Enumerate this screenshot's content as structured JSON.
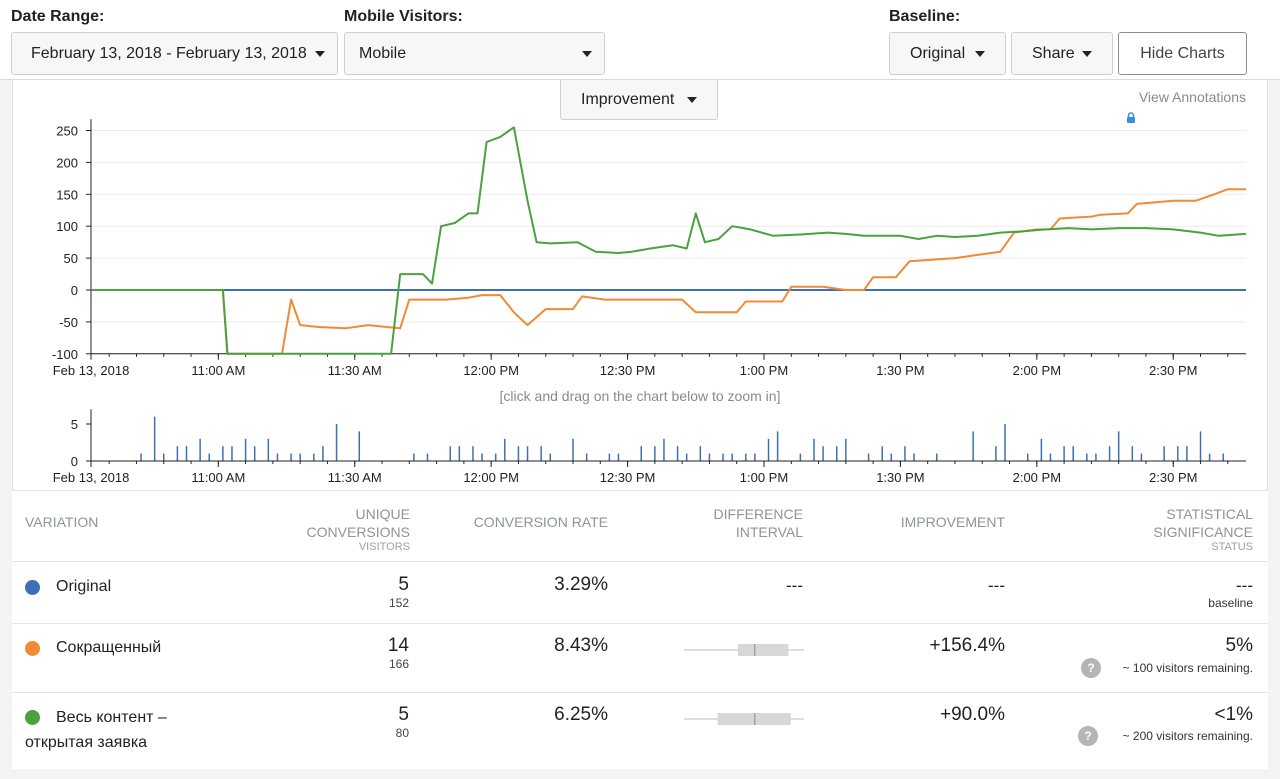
{
  "filters": {
    "date_range_label": "Date Range:",
    "date_range_value": "February 13, 2018 - February 13, 2018",
    "mobile_label": "Mobile Visitors:",
    "mobile_value": "Mobile",
    "baseline_label": "Baseline:",
    "baseline_value": "Original",
    "share_label": "Share",
    "hide_charts_label": "Hide Charts"
  },
  "chart_controls": {
    "metric_dropdown": "Improvement",
    "view_annotations": "View Annotations",
    "zoom_hint": "[click and drag on the chart below to zoom in]"
  },
  "chart_data": [
    {
      "type": "line",
      "title": "",
      "x_ticks": [
        "Feb 13, 2018",
        "11:00 AM",
        "11:30 AM",
        "12:00 PM",
        "12:30 PM",
        "1:00 PM",
        "1:30 PM",
        "2:00 PM",
        "2:30 PM"
      ],
      "x_range": [
        "10:32",
        "14:46"
      ],
      "ylim": [
        -100,
        260
      ],
      "y_ticks": [
        250,
        200,
        150,
        100,
        50,
        0,
        -50,
        -100
      ],
      "grid": true,
      "series": [
        {
          "color": "#3d6fb5",
          "points": [
            [
              "10:32",
              0
            ],
            [
              "14:46",
              0
            ]
          ]
        },
        {
          "color": "#f28a35",
          "points": [
            [
              "10:32",
              0
            ],
            [
              "11:01",
              0
            ],
            [
              "11:02",
              -100
            ],
            [
              "11:14",
              -100
            ],
            [
              "11:16",
              -15
            ],
            [
              "11:18",
              -55
            ],
            [
              "11:22",
              -58
            ],
            [
              "11:28",
              -60
            ],
            [
              "11:33",
              -55
            ],
            [
              "11:37",
              -58
            ],
            [
              "11:40",
              -60
            ],
            [
              "11:42",
              -15
            ],
            [
              "11:50",
              -15
            ],
            [
              "11:55",
              -12
            ],
            [
              "11:58",
              -8
            ],
            [
              "12:02",
              -8
            ],
            [
              "12:05",
              -35
            ],
            [
              "12:08",
              -55
            ],
            [
              "12:12",
              -30
            ],
            [
              "12:18",
              -30
            ],
            [
              "12:20",
              -10
            ],
            [
              "12:25",
              -15
            ],
            [
              "12:32",
              -15
            ],
            [
              "12:37",
              -15
            ],
            [
              "12:42",
              -15
            ],
            [
              "12:45",
              -35
            ],
            [
              "12:54",
              -35
            ],
            [
              "12:56",
              -18
            ],
            [
              "13:04",
              -18
            ],
            [
              "13:06",
              5
            ],
            [
              "13:13",
              5
            ],
            [
              "13:18",
              0
            ],
            [
              "13:22",
              0
            ],
            [
              "13:24",
              20
            ],
            [
              "13:29",
              20
            ],
            [
              "13:32",
              45
            ],
            [
              "13:38",
              48
            ],
            [
              "13:42",
              50
            ],
            [
              "13:47",
              55
            ],
            [
              "13:52",
              60
            ],
            [
              "13:55",
              90
            ],
            [
              "14:00",
              95
            ],
            [
              "14:03",
              95
            ],
            [
              "14:05",
              112
            ],
            [
              "14:12",
              115
            ],
            [
              "14:14",
              118
            ],
            [
              "14:20",
              120
            ],
            [
              "14:22",
              135
            ],
            [
              "14:30",
              140
            ],
            [
              "14:35",
              140
            ],
            [
              "14:39",
              150
            ],
            [
              "14:42",
              158
            ],
            [
              "14:46",
              158
            ]
          ]
        },
        {
          "color": "#4aa23e",
          "points": [
            [
              "10:32",
              0
            ],
            [
              "11:01",
              0
            ],
            [
              "11:02",
              -100
            ],
            [
              "11:38",
              -100
            ],
            [
              "11:40",
              25
            ],
            [
              "11:45",
              25
            ],
            [
              "11:47",
              10
            ],
            [
              "11:49",
              100
            ],
            [
              "11:52",
              105
            ],
            [
              "11:55",
              120
            ],
            [
              "11:57",
              120
            ],
            [
              "11:59",
              232
            ],
            [
              "12:02",
              240
            ],
            [
              "12:05",
              255
            ],
            [
              "12:08",
              140
            ],
            [
              "12:10",
              75
            ],
            [
              "12:13",
              73
            ],
            [
              "12:19",
              75
            ],
            [
              "12:23",
              60
            ],
            [
              "12:28",
              58
            ],
            [
              "12:31",
              60
            ],
            [
              "12:35",
              65
            ],
            [
              "12:40",
              70
            ],
            [
              "12:43",
              65
            ],
            [
              "12:45",
              120
            ],
            [
              "12:47",
              75
            ],
            [
              "12:50",
              80
            ],
            [
              "12:53",
              100
            ],
            [
              "12:57",
              95
            ],
            [
              "13:02",
              85
            ],
            [
              "13:08",
              87
            ],
            [
              "13:14",
              90
            ],
            [
              "13:18",
              88
            ],
            [
              "13:22",
              85
            ],
            [
              "13:26",
              85
            ],
            [
              "13:30",
              85
            ],
            [
              "13:34",
              80
            ],
            [
              "13:38",
              85
            ],
            [
              "13:42",
              83
            ],
            [
              "13:47",
              85
            ],
            [
              "13:52",
              90
            ],
            [
              "13:57",
              92
            ],
            [
              "14:02",
              95
            ],
            [
              "14:07",
              97
            ],
            [
              "14:12",
              95
            ],
            [
              "14:18",
              97
            ],
            [
              "14:24",
              97
            ],
            [
              "14:30",
              95
            ],
            [
              "14:36",
              90
            ],
            [
              "14:40",
              85
            ],
            [
              "14:46",
              88
            ]
          ]
        }
      ]
    },
    {
      "type": "bar",
      "title": "",
      "x_ticks": [
        "Feb 13, 2018",
        "11:00 AM",
        "11:30 AM",
        "12:00 PM",
        "12:30 PM",
        "1:00 PM",
        "1:30 PM",
        "2:00 PM",
        "2:30 PM"
      ],
      "ylim": [
        0,
        7
      ],
      "y_ticks": [
        5,
        0
      ],
      "color": "#3d6fb5",
      "x": [
        "10:43",
        "10:46",
        "10:48",
        "10:51",
        "10:53",
        "10:56",
        "10:58",
        "11:01",
        "11:03",
        "11:06",
        "11:08",
        "11:11",
        "11:13",
        "11:16",
        "11:18",
        "11:21",
        "11:23",
        "11:26",
        "11:31",
        "11:43",
        "11:46",
        "11:51",
        "11:53",
        "11:56",
        "11:58",
        "12:01",
        "12:03",
        "12:06",
        "12:08",
        "12:11",
        "12:13",
        "12:18",
        "12:21",
        "12:26",
        "12:28",
        "12:33",
        "12:36",
        "12:38",
        "12:41",
        "12:43",
        "12:46",
        "12:48",
        "12:51",
        "12:53",
        "12:56",
        "12:58",
        "13:01",
        "13:03",
        "13:08",
        "13:11",
        "13:13",
        "13:16",
        "13:18",
        "13:23",
        "13:26",
        "13:28",
        "13:31",
        "13:33",
        "13:38",
        "13:46",
        "13:51",
        "13:53",
        "13:58",
        "14:01",
        "14:03",
        "14:06",
        "14:08",
        "14:11",
        "14:13",
        "14:16",
        "14:18",
        "14:21",
        "14:23",
        "14:28",
        "14:31",
        "14:33",
        "14:36",
        "14:38",
        "14:41"
      ],
      "values": [
        1,
        6,
        1,
        2,
        2,
        3,
        1,
        2,
        2,
        3,
        2,
        3,
        1,
        1,
        1,
        1,
        2,
        5,
        4,
        1,
        1,
        2,
        2,
        2,
        1,
        1,
        3,
        2,
        2,
        2,
        1,
        3,
        1,
        1,
        1,
        2,
        2,
        3,
        2,
        1,
        2,
        1,
        1,
        1,
        1,
        1,
        3,
        4,
        1,
        3,
        2,
        2,
        3,
        1,
        2,
        1,
        2,
        1,
        1,
        4,
        2,
        5,
        1,
        3,
        1,
        2,
        2,
        1,
        1,
        2,
        4,
        2,
        1,
        2,
        2,
        2,
        4,
        1,
        1
      ]
    }
  ],
  "table": {
    "headers": {
      "variation": "VARIATION",
      "unique_conversions": "UNIQUE CONVERSIONS",
      "visitors": "VISITORS",
      "conversion_rate": "CONVERSION RATE",
      "difference_interval": "DIFFERENCE INTERVAL",
      "improvement": "IMPROVEMENT",
      "statistical_significance": "STATISTICAL SIGNIFICANCE",
      "status": "STATUS"
    },
    "rows": [
      {
        "color": "#3d6fb5",
        "name": "Original",
        "conversions": "5",
        "visitors": "152",
        "rate": "3.29%",
        "interval": "---",
        "improvement": "---",
        "significance": "---",
        "status": "baseline"
      },
      {
        "color": "#f28a35",
        "name": "Сокращенный",
        "conversions": "14",
        "visitors": "166",
        "rate": "8.43%",
        "interval_box": {
          "low": 0.45,
          "mid": 0.59,
          "high": 0.87
        },
        "improvement": "+156.4%",
        "significance": "5%",
        "status": "~ 100 visitors remaining."
      },
      {
        "color": "#4aa23e",
        "name_line1": "Весь контент –",
        "name_line2": "открытая заявка",
        "conversions": "5",
        "visitors": "80",
        "rate": "6.25%",
        "interval_box": {
          "low": 0.28,
          "mid": 0.59,
          "high": 0.89
        },
        "improvement": "+90.0%",
        "significance": "<1%",
        "status": "~ 200 visitors remaining."
      }
    ]
  }
}
